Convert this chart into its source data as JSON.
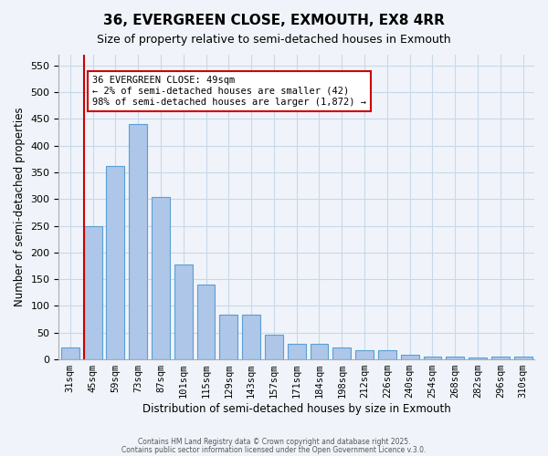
{
  "title1": "36, EVERGREEN CLOSE, EXMOUTH, EX8 4RR",
  "title2": "Size of property relative to semi-detached houses in Exmouth",
  "xlabel": "Distribution of semi-detached houses by size in Exmouth",
  "ylabel": "Number of semi-detached properties",
  "categories": [
    "31sqm",
    "45sqm",
    "59sqm",
    "73sqm",
    "87sqm",
    "101sqm",
    "115sqm",
    "129sqm",
    "143sqm",
    "157sqm",
    "171sqm",
    "184sqm",
    "198sqm",
    "212sqm",
    "226sqm",
    "240sqm",
    "254sqm",
    "268sqm",
    "282sqm",
    "296sqm",
    "310sqm"
  ],
  "values": [
    22,
    250,
    362,
    440,
    303,
    178,
    140,
    84,
    84,
    47,
    29,
    29,
    22,
    18,
    18,
    8,
    5,
    5,
    3,
    5,
    5
  ],
  "bar_color": "#aec6e8",
  "bar_edge_color": "#5a9fd4",
  "grid_color": "#c8d8e8",
  "background_color": "#f0f4fa",
  "annotation_box_color": "#ffffff",
  "annotation_border_color": "#cc0000",
  "property_line_color": "#cc0000",
  "property_line_x": 0.6,
  "annotation_text1": "36 EVERGREEN CLOSE: 49sqm",
  "annotation_text2": "← 2% of semi-detached houses are smaller (42)",
  "annotation_text3": "98% of semi-detached houses are larger (1,872) →",
  "ylim": [
    0,
    570
  ],
  "yticks": [
    0,
    50,
    100,
    150,
    200,
    250,
    300,
    350,
    400,
    450,
    500,
    550
  ],
  "footer1": "Contains HM Land Registry data © Crown copyright and database right 2025.",
  "footer2": "Contains public sector information licensed under the Open Government Licence v.3.0."
}
